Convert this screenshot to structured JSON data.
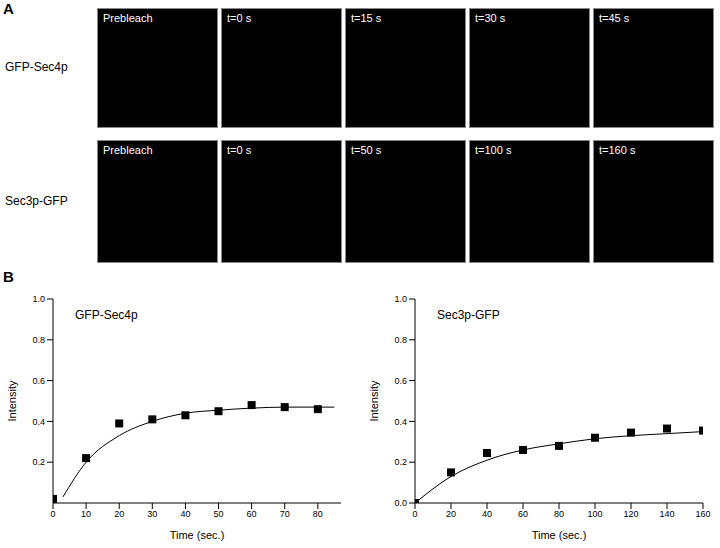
{
  "figure": {
    "panel_a": {
      "label": "A",
      "rows": [
        {
          "name": "GFP-Sec4p",
          "frames": [
            "Prebleach",
            "t=0 s",
            "t=15 s",
            "t=30 s",
            "t=45 s"
          ]
        },
        {
          "name": "Sec3p-GFP",
          "frames": [
            "Prebleach",
            "t=0 s",
            "t=50 s",
            "t=100 s",
            "t=160 s"
          ]
        }
      ]
    },
    "panel_b": {
      "label": "B"
    }
  },
  "chart_data": [
    {
      "type": "scatter",
      "title": "GFP-Sec4p",
      "x_label": "Time (sec.)",
      "y_label": "Intensity",
      "xlim": [
        0,
        87
      ],
      "xticks": [
        0,
        10,
        20,
        30,
        40,
        50,
        60,
        70,
        80
      ],
      "ylim": [
        0,
        1
      ],
      "yticks": [
        0.2,
        0.4,
        0.6,
        0.8,
        {
          "value": 1,
          "label": "1.0"
        }
      ],
      "series": [
        {
          "type": "scatter",
          "marker": "square",
          "color": "#000000",
          "x": [
            0,
            10,
            20,
            30,
            40,
            50,
            60,
            70,
            80
          ],
          "values": [
            0.02,
            0.22,
            0.39,
            0.41,
            0.43,
            0.45,
            0.48,
            0.47,
            0.46
          ]
        },
        {
          "type": "line",
          "color": "#000000",
          "x": [
            3,
            10,
            20,
            30,
            40,
            50,
            60,
            70,
            85
          ],
          "values": [
            0.03,
            0.2,
            0.33,
            0.4,
            0.44,
            0.455,
            0.465,
            0.47,
            0.47
          ]
        }
      ]
    },
    {
      "type": "scatter",
      "title": "Sec3p-GFP",
      "x_label": "Time (sec.)",
      "y_label": "Intensity",
      "xlim": [
        0,
        160
      ],
      "xticks": [
        0,
        20,
        40,
        60,
        80,
        100,
        120,
        140,
        160
      ],
      "ylim": [
        0,
        1
      ],
      "yticks": [
        {
          "value": 0,
          "label": "0.0"
        },
        0.2,
        0.4,
        0.6,
        0.8,
        {
          "value": 1,
          "label": "1.0"
        }
      ],
      "series": [
        {
          "type": "scatter",
          "marker": "square",
          "color": "#000000",
          "x": [
            0,
            20,
            40,
            60,
            80,
            100,
            120,
            140,
            160
          ],
          "values": [
            0,
            0.15,
            0.245,
            0.26,
            0.28,
            0.32,
            0.345,
            0.365,
            0.355
          ]
        },
        {
          "type": "line",
          "color": "#000000",
          "x": [
            0,
            20,
            40,
            60,
            80,
            100,
            120,
            140,
            160
          ],
          "values": [
            0,
            0.13,
            0.21,
            0.26,
            0.29,
            0.315,
            0.33,
            0.34,
            0.35
          ]
        }
      ]
    }
  ]
}
